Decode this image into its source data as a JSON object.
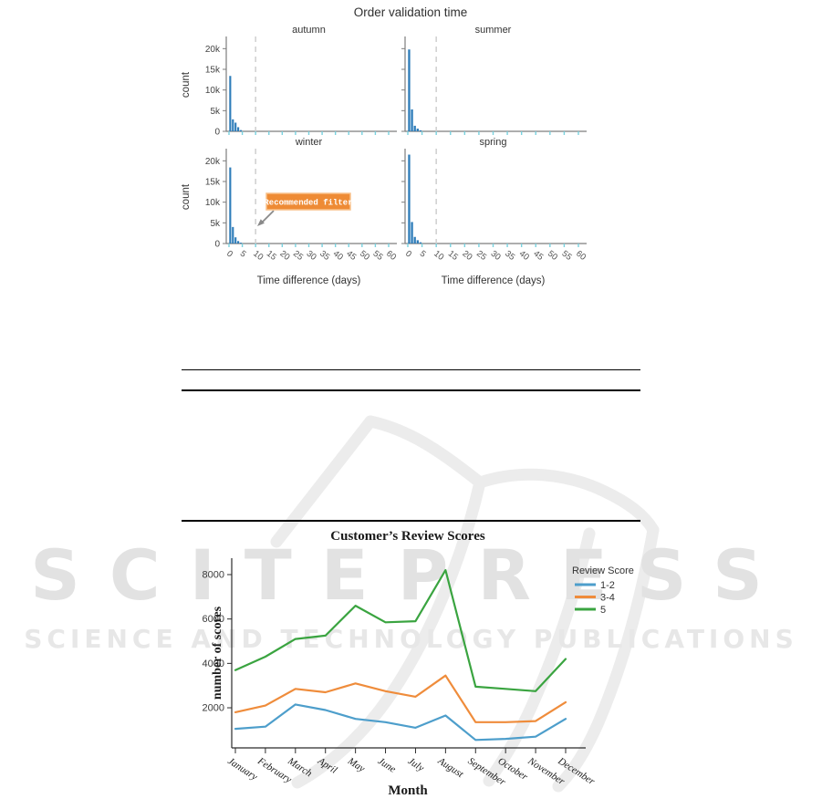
{
  "watermark": {
    "line1": "SCITEPRESS",
    "line2": "SCIENCE AND TECHNOLOGY PUBLICATIONS",
    "color": "#e5e5e5"
  },
  "chart_data": [
    {
      "type": "bar",
      "title": "Order validation time",
      "xlabel": "Time difference (days)",
      "ylabel": "count",
      "xlim": [
        0,
        60
      ],
      "ylim": [
        0,
        22500
      ],
      "x_ticks": [
        0,
        5,
        10,
        15,
        20,
        25,
        30,
        35,
        40,
        45,
        50,
        55,
        60
      ],
      "y_tick_values": [
        0,
        5000,
        10000,
        15000,
        20000
      ],
      "y_tick_labels": [
        "0",
        "5k",
        "10k",
        "15k",
        "20k"
      ],
      "grid": false,
      "vline_day": 10,
      "facets": [
        {
          "label": "autumn",
          "bin_start_day": 0,
          "counts": [
            13400,
            2900,
            2100,
            1000,
            300
          ]
        },
        {
          "label": "summer",
          "bin_start_day": 0,
          "counts": [
            19800,
            5300,
            1350,
            650,
            250
          ]
        },
        {
          "label": "winter",
          "bin_start_day": 0,
          "counts": [
            18400,
            4000,
            1500,
            600,
            200
          ]
        },
        {
          "label": "spring",
          "bin_start_day": 0,
          "counts": [
            21500,
            5200,
            1600,
            800,
            300
          ]
        }
      ],
      "annotation": {
        "text": "Recommended filter",
        "facet": "winter",
        "points_to_day": 10,
        "bg_color": "#ee8b35",
        "border_color": "#f8c18a",
        "text_color": "#ffffff",
        "arrow_color": "#8a8a8a"
      },
      "colors": {
        "bar": "#2d7cb9",
        "axis": "#7d7d7d",
        "x_tick": "#79d1de",
        "dashed_line": "#cfcfcf",
        "text": "#333333",
        "tick_label": "#555555"
      }
    },
    {
      "type": "line",
      "title": "Customer’s Review Scores",
      "xlabel": "Month",
      "ylabel": "number of scores",
      "legend_title": "Review Score",
      "legend_position": "top-right",
      "grid": false,
      "categories": [
        "January",
        "February",
        "March",
        "April",
        "May",
        "June",
        "July",
        "August",
        "September",
        "October",
        "November",
        "December"
      ],
      "y_ticks": [
        2000,
        4000,
        6000,
        8000
      ],
      "ylim": [
        0,
        8700
      ],
      "series": [
        {
          "name": "1-2",
          "color": "#4d9ecb",
          "values": [
            1050,
            1150,
            2150,
            1900,
            1500,
            1350,
            1100,
            1650,
            550,
            600,
            700,
            1500
          ]
        },
        {
          "name": "3-4",
          "color": "#ef8c3b",
          "values": [
            1800,
            2100,
            2850,
            2700,
            3100,
            2750,
            2500,
            3450,
            1350,
            1350,
            1400,
            2250
          ]
        },
        {
          "name": "5",
          "color": "#3aa440",
          "values": [
            3700,
            4300,
            5100,
            5250,
            6600,
            5850,
            5900,
            8200,
            2950,
            2850,
            2750,
            4200
          ]
        }
      ],
      "axis_color": "#2b2b2b",
      "text_color": "#1a1a1a"
    }
  ]
}
